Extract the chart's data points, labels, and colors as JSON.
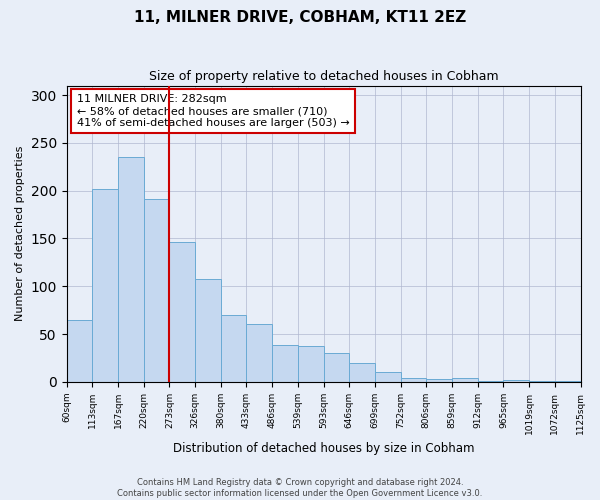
{
  "title": "11, MILNER DRIVE, COBHAM, KT11 2EZ",
  "subtitle": "Size of property relative to detached houses in Cobham",
  "xlabel": "Distribution of detached houses by size in Cobham",
  "ylabel": "Number of detached properties",
  "categories": [
    "60sqm",
    "113sqm",
    "167sqm",
    "220sqm",
    "273sqm",
    "326sqm",
    "380sqm",
    "433sqm",
    "486sqm",
    "539sqm",
    "593sqm",
    "646sqm",
    "699sqm",
    "752sqm",
    "806sqm",
    "859sqm",
    "912sqm",
    "965sqm",
    "1019sqm",
    "1072sqm",
    "1125sqm"
  ],
  "values": [
    65,
    202,
    235,
    191,
    146,
    108,
    70,
    61,
    39,
    37,
    30,
    20,
    10,
    4,
    3,
    4,
    1,
    2,
    1,
    1
  ],
  "bar_color": "#c5d8f0",
  "bar_edge_color": "#6aaad4",
  "red_line_index": 4,
  "annotation_title": "11 MILNER DRIVE: 282sqm",
  "annotation_line1": "← 58% of detached houses are smaller (710)",
  "annotation_line2": "41% of semi-detached houses are larger (503) →",
  "annotation_box_color": "#ffffff",
  "annotation_box_edge": "#cc0000",
  "red_line_color": "#cc0000",
  "ylim": [
    0,
    310
  ],
  "footnote1": "Contains HM Land Registry data © Crown copyright and database right 2024.",
  "footnote2": "Contains public sector information licensed under the Open Government Licence v3.0.",
  "background_color": "#e8eef8",
  "plot_background": "#e8eef8"
}
